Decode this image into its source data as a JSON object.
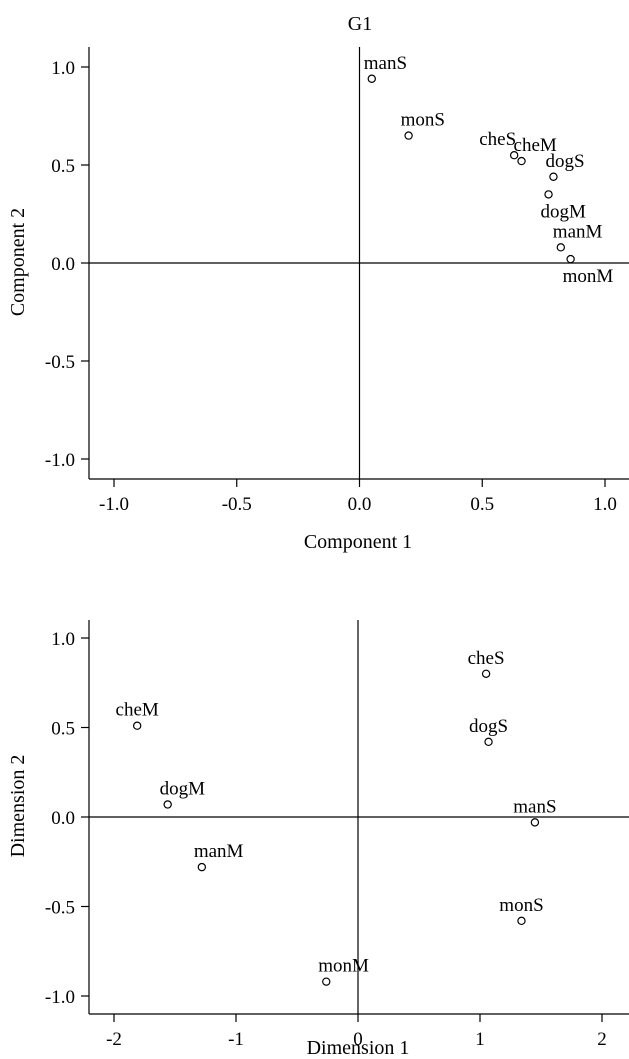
{
  "chart_data": [
    {
      "type": "scatter",
      "title": "G1",
      "xlabel": "Component 1",
      "ylabel": "Component 2",
      "xlim": [
        -1.1,
        1.1
      ],
      "ylim": [
        -1.1,
        1.1
      ],
      "xticks": [
        {
          "value": -1.0,
          "label": "-1.0"
        },
        {
          "value": -0.5,
          "label": "-0.5"
        },
        {
          "value": 0.0,
          "label": "0.0"
        },
        {
          "value": 0.5,
          "label": "0.5"
        },
        {
          "value": 1.0,
          "label": "1.0"
        }
      ],
      "yticks": [
        {
          "value": 1.0,
          "label": "1.0"
        },
        {
          "value": 0.5,
          "label": "0.5"
        },
        {
          "value": 0.0,
          "label": "0.0"
        },
        {
          "value": -0.5,
          "label": "-0.5"
        },
        {
          "value": -1.0,
          "label": "-1.0"
        }
      ],
      "reference_lines": {
        "x": 0,
        "y": 0
      },
      "grid": false,
      "points": [
        {
          "label": "manS",
          "x": 0.05,
          "y": 0.94,
          "label_pos": "above-right"
        },
        {
          "label": "monS",
          "x": 0.2,
          "y": 0.65,
          "label_pos": "above-right"
        },
        {
          "label": "cheS",
          "x": 0.63,
          "y": 0.55,
          "label_pos": "above-left"
        },
        {
          "label": "cheM",
          "x": 0.66,
          "y": 0.52,
          "label_pos": "above-right"
        },
        {
          "label": "dogS",
          "x": 0.79,
          "y": 0.44,
          "label_pos": "above-right"
        },
        {
          "label": "dogM",
          "x": 0.77,
          "y": 0.35,
          "label_pos": "below-right"
        },
        {
          "label": "manM",
          "x": 0.82,
          "y": 0.08,
          "label_pos": "above-right"
        },
        {
          "label": "monM",
          "x": 0.86,
          "y": 0.02,
          "label_pos": "below-right"
        }
      ]
    },
    {
      "type": "scatter",
      "title": "",
      "xlabel": "Dimension 1",
      "ylabel": "Dimension 2",
      "xlim": [
        -2.2,
        2.2
      ],
      "ylim": [
        -1.1,
        1.1
      ],
      "xticks": [
        {
          "value": -2,
          "label": "-2"
        },
        {
          "value": -1,
          "label": "-1"
        },
        {
          "value": 0,
          "label": "0"
        },
        {
          "value": 1,
          "label": "1"
        },
        {
          "value": 2,
          "label": "2"
        }
      ],
      "yticks": [
        {
          "value": 1.0,
          "label": "1.0"
        },
        {
          "value": 0.5,
          "label": "0.5"
        },
        {
          "value": 0.0,
          "label": "0.0"
        },
        {
          "value": -0.5,
          "label": "-0.5"
        },
        {
          "value": -1.0,
          "label": "-1.0"
        }
      ],
      "reference_lines": {
        "x": 0,
        "y": 0
      },
      "grid": false,
      "points": [
        {
          "label": "cheM",
          "x": -1.81,
          "y": 0.51,
          "label_pos": "above"
        },
        {
          "label": "dogM",
          "x": -1.56,
          "y": 0.07,
          "label_pos": "above-right"
        },
        {
          "label": "manM",
          "x": -1.28,
          "y": -0.28,
          "label_pos": "above-right"
        },
        {
          "label": "monM",
          "x": -0.26,
          "y": -0.92,
          "label_pos": "above-right"
        },
        {
          "label": "cheS",
          "x": 1.05,
          "y": 0.8,
          "label_pos": "above"
        },
        {
          "label": "dogS",
          "x": 1.07,
          "y": 0.42,
          "label_pos": "above"
        },
        {
          "label": "manS",
          "x": 1.45,
          "y": -0.03,
          "label_pos": "above"
        },
        {
          "label": "monS",
          "x": 1.34,
          "y": -0.58,
          "label_pos": "above"
        }
      ]
    }
  ]
}
